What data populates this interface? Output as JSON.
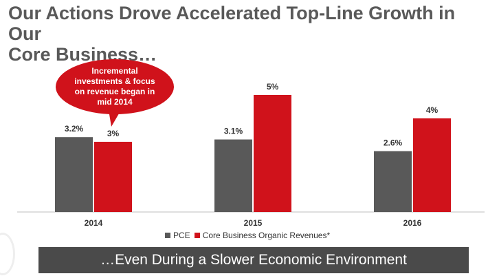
{
  "title_lines": [
    "Our Actions Drove Accelerated Top-Line Growth in Our",
    "Core Business…"
  ],
  "banner": "…Even During a Slower Economic Environment",
  "callout": {
    "lines": [
      "Incremental",
      "investments & focus",
      "on revenue began in",
      "mid 2014"
    ],
    "color": "#d0121b"
  },
  "chart_data": {
    "type": "bar",
    "categories": [
      "2014",
      "2015",
      "2016"
    ],
    "series": [
      {
        "name": "PCE",
        "values": [
          3.2,
          3.1,
          2.6
        ],
        "labels": [
          "3.2%",
          "3.1%",
          "2.6%"
        ],
        "color": "#595959"
      },
      {
        "name": "Core Business Organic Revenues*",
        "values": [
          3,
          5,
          4
        ],
        "labels": [
          "3%",
          "5%",
          "4%"
        ],
        "color": "#d0121b"
      }
    ],
    "ylim": [
      0,
      5
    ],
    "grid": false,
    "legend_position": "bottom"
  }
}
